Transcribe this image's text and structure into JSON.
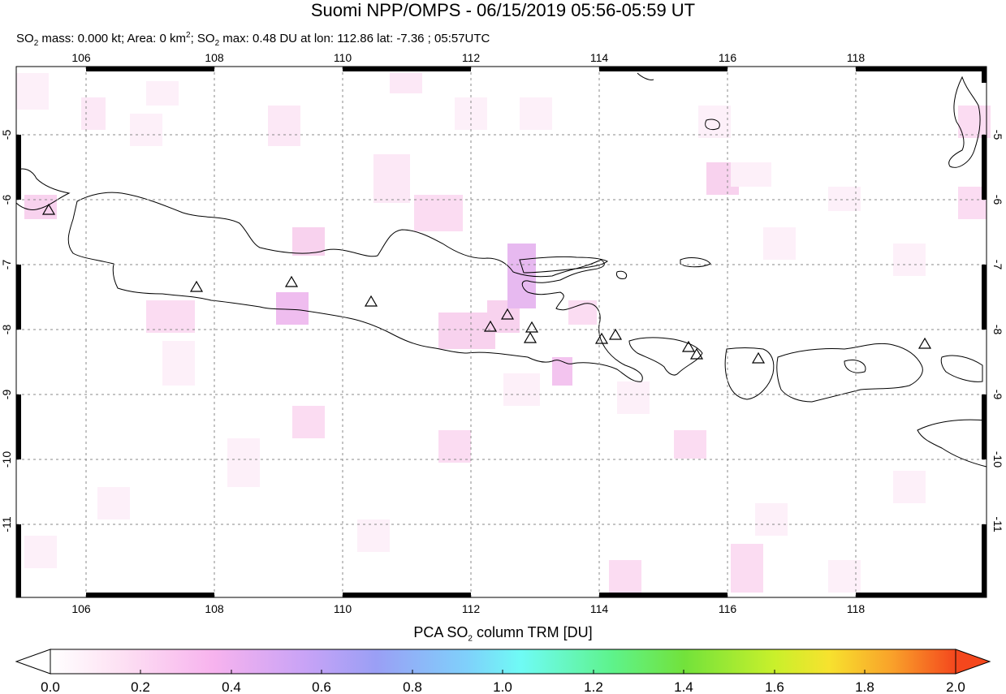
{
  "header": {
    "title": "Suomi NPP/OMPS - 06/15/2019 05:56-05:59 UT",
    "subtitle": {
      "so2_label": "SO",
      "mass_text": " mass: 0.000 kt; Area: 0 km",
      "max_label": "; SO",
      "max_text": " max: 0.48 DU at lon: 112.86 lat: -7.36 ; 05:57UTC"
    }
  },
  "map": {
    "lon_ticks": [
      "106",
      "108",
      "110",
      "112",
      "114",
      "116",
      "118"
    ],
    "lat_ticks": [
      "-5",
      "-6",
      "-7",
      "-8",
      "-9",
      "-10",
      "-11"
    ],
    "lon_range": [
      105,
      120
    ],
    "lat_range": [
      -12,
      -4
    ]
  },
  "colorbar": {
    "title_main": "PCA SO",
    "title_sub": "2",
    "title_rest": " column TRM [DU]",
    "ticks": [
      "0.0",
      "0.2",
      "0.4",
      "0.6",
      "0.8",
      "1.0",
      "1.2",
      "1.4",
      "1.6",
      "1.8",
      "2.0"
    ],
    "range": [
      0,
      2
    ],
    "colors": [
      "#ffffff",
      "#fde0f3",
      "#f7b3ee",
      "#c9a3f6",
      "#9a9ff5",
      "#7fd0fb",
      "#6ffbf5",
      "#5ef38c",
      "#72e23b",
      "#c9f02b",
      "#f7e22e",
      "#f9a12a",
      "#f4471d"
    ]
  },
  "volcano_icon": "triangle-icon"
}
